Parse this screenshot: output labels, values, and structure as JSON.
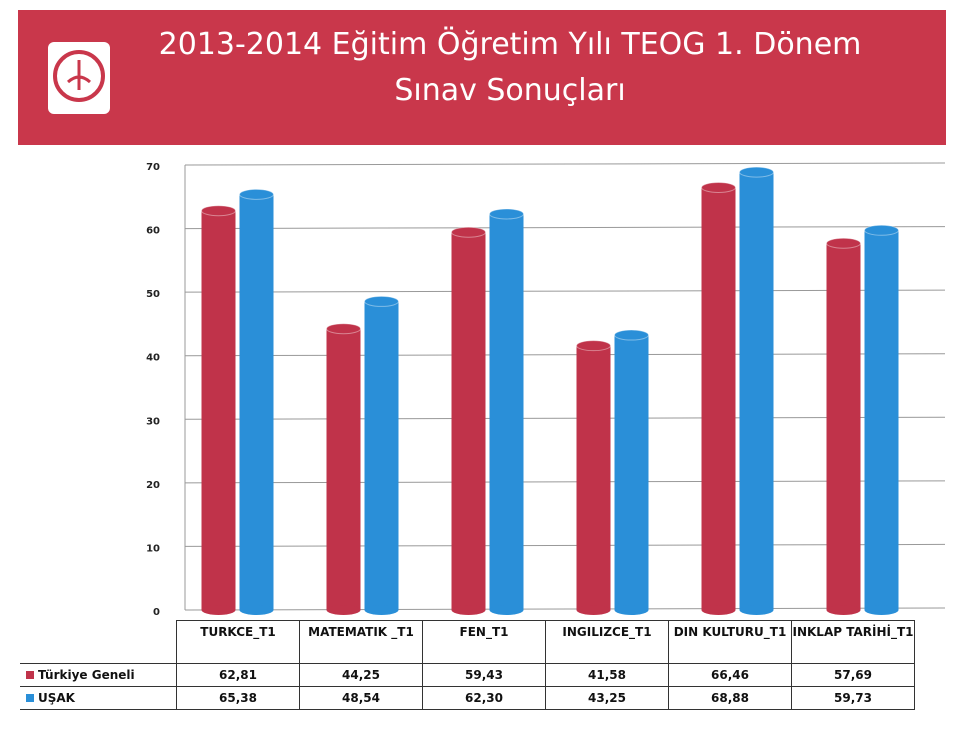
{
  "chart_data": {
    "type": "bar",
    "title": "2013-2014 Eğitim Öğretim Yılı TEOG 1. Dönem Sınav Sonuçları",
    "categories": [
      "TURKCE_T1",
      "MATEMATIK _T1",
      "FEN_T1",
      "INGILIZCE_T1",
      "DIN KULTURU_T1",
      "INKLAP TARİHİ_T1"
    ],
    "series": [
      {
        "name": "Türkiye Geneli",
        "color": "#c0334a",
        "values": [
          62.81,
          44.25,
          59.43,
          41.58,
          66.46,
          57.69
        ],
        "value_labels": [
          "62,81",
          "44,25",
          "59,43",
          "41,58",
          "66,46",
          "57,69"
        ]
      },
      {
        "name": "UŞAK",
        "color": "#2a8fd8",
        "values": [
          65.38,
          48.54,
          62.3,
          43.25,
          68.88,
          59.73
        ],
        "value_labels": [
          "65,38",
          "48,54",
          "62,30",
          "43,25",
          "68,88",
          "59,73"
        ]
      }
    ],
    "ylim": [
      0,
      70
    ],
    "yticks": [
      0,
      10,
      20,
      30,
      40,
      50,
      60,
      70
    ],
    "grid": true
  }
}
